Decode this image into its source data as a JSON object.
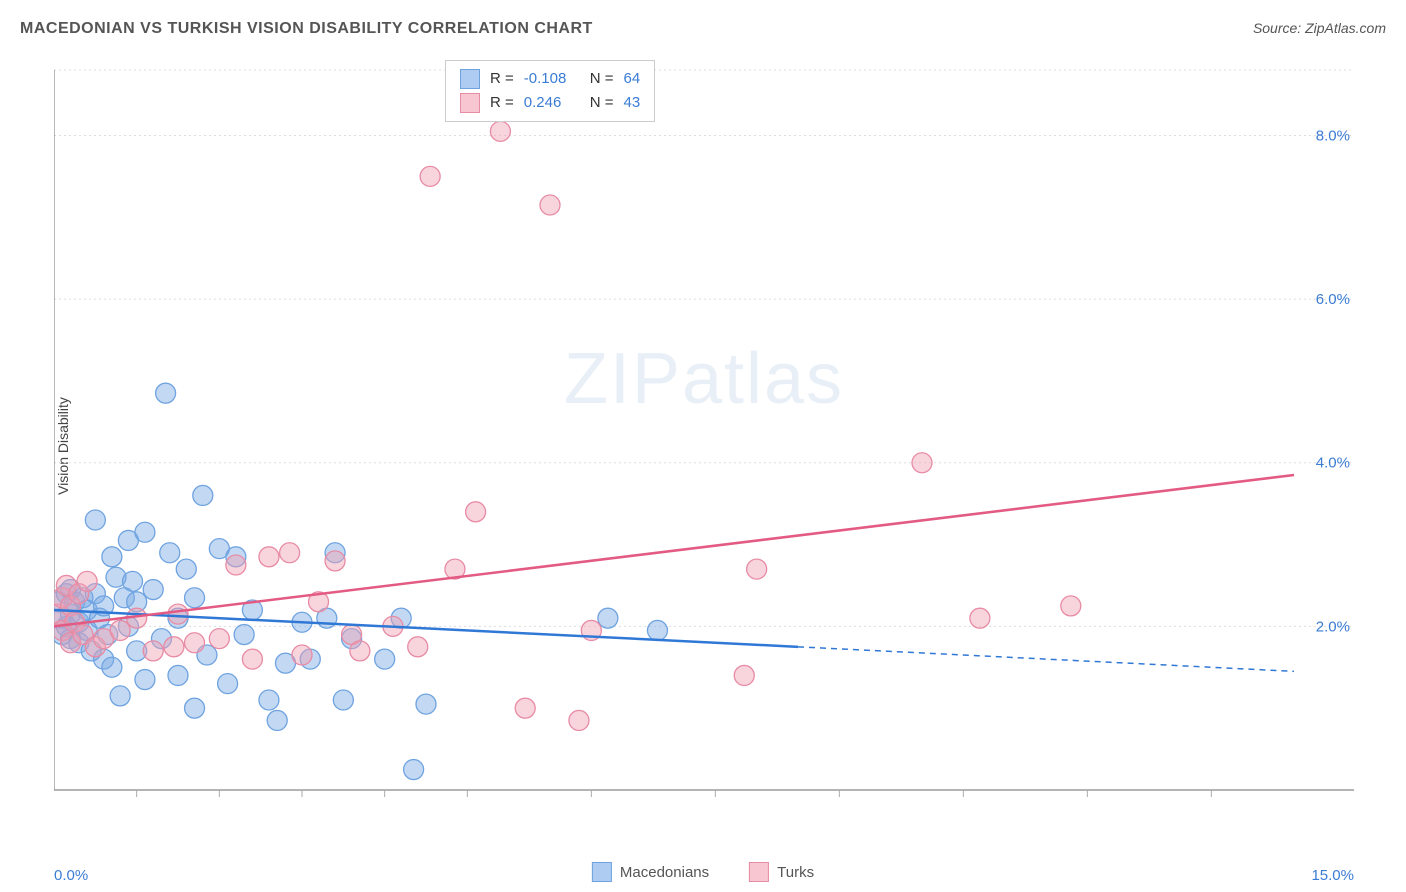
{
  "chart": {
    "type": "scatter-with-regression",
    "title": "MACEDONIAN VS TURKISH VISION DISABILITY CORRELATION CHART",
    "source_label": "Source: ZipAtlas.com",
    "y_axis_label": "Vision Disability",
    "watermark": {
      "left": "ZIP",
      "right": "atlas"
    },
    "background_color": "#ffffff",
    "grid_color": "#dddddd",
    "axis_color": "#888888",
    "tick_color": "#aaaaaa",
    "xlim": [
      0,
      15
    ],
    "ylim": [
      0,
      8.8
    ],
    "x_ticks_major": [
      0,
      15
    ],
    "x_tick_labels": [
      "0.0%",
      "15.0%"
    ],
    "x_ticks_minor": [
      1,
      2,
      3,
      4,
      5,
      6.5,
      8,
      9.5,
      11,
      12.5,
      14
    ],
    "y_ticks_major": [
      2,
      4,
      6,
      8
    ],
    "y_tick_labels": [
      "2.0%",
      "4.0%",
      "6.0%",
      "8.0%"
    ],
    "label_color": "#3b7cd4",
    "label_fontsize": 15,
    "title_color": "#555555",
    "title_fontsize": 16,
    "stat_box": {
      "border_color": "#cccccc",
      "rows": [
        {
          "swatch_fill": "#aeccf1",
          "swatch_border": "#6fa3e0",
          "r_label": "R =",
          "r_value": "-0.108",
          "n_label": "N =",
          "n_value": "64"
        },
        {
          "swatch_fill": "#f7c6d1",
          "swatch_border": "#e88ba4",
          "r_label": "R =",
          "r_value": "0.246",
          "n_label": "N =",
          "n_value": "43"
        }
      ]
    },
    "bottom_legend": [
      {
        "swatch_fill": "#aeccf1",
        "swatch_border": "#6fa3e0",
        "label": "Macedonians"
      },
      {
        "swatch_fill": "#f7c6d1",
        "swatch_border": "#e88ba4",
        "label": "Turks"
      }
    ],
    "series": [
      {
        "name": "Macedonians",
        "marker_fill": "rgba(122, 170, 228, 0.45)",
        "marker_stroke": "#6fa3e0",
        "marker_radius": 10,
        "line_color": "#2f78d6",
        "line_width": 2.5,
        "line_solid_x_end": 9.0,
        "line_dashed_x_end": 15.0,
        "regression": {
          "x1": 0,
          "y1": 2.2,
          "x2": 15,
          "y2": 1.45
        },
        "points": [
          [
            0.05,
            2.3
          ],
          [
            0.1,
            2.1
          ],
          [
            0.1,
            1.9
          ],
          [
            0.15,
            2.4
          ],
          [
            0.15,
            2.0
          ],
          [
            0.2,
            2.45
          ],
          [
            0.2,
            2.15
          ],
          [
            0.2,
            1.85
          ],
          [
            0.25,
            2.3
          ],
          [
            0.3,
            2.05
          ],
          [
            0.3,
            1.8
          ],
          [
            0.35,
            2.35
          ],
          [
            0.4,
            2.2
          ],
          [
            0.4,
            1.95
          ],
          [
            0.45,
            1.7
          ],
          [
            0.5,
            3.3
          ],
          [
            0.5,
            2.4
          ],
          [
            0.55,
            2.1
          ],
          [
            0.6,
            1.6
          ],
          [
            0.6,
            2.25
          ],
          [
            0.65,
            1.9
          ],
          [
            0.7,
            2.85
          ],
          [
            0.7,
            1.5
          ],
          [
            0.75,
            2.6
          ],
          [
            0.8,
            1.15
          ],
          [
            0.85,
            2.35
          ],
          [
            0.9,
            3.05
          ],
          [
            0.9,
            2.0
          ],
          [
            0.95,
            2.55
          ],
          [
            1.0,
            2.3
          ],
          [
            1.0,
            1.7
          ],
          [
            1.1,
            3.15
          ],
          [
            1.1,
            1.35
          ],
          [
            1.2,
            2.45
          ],
          [
            1.3,
            1.85
          ],
          [
            1.35,
            4.85
          ],
          [
            1.4,
            2.9
          ],
          [
            1.5,
            1.4
          ],
          [
            1.5,
            2.1
          ],
          [
            1.6,
            2.7
          ],
          [
            1.7,
            1.0
          ],
          [
            1.7,
            2.35
          ],
          [
            1.8,
            3.6
          ],
          [
            1.85,
            1.65
          ],
          [
            2.0,
            2.95
          ],
          [
            2.1,
            1.3
          ],
          [
            2.2,
            2.85
          ],
          [
            2.3,
            1.9
          ],
          [
            2.4,
            2.2
          ],
          [
            2.6,
            1.1
          ],
          [
            2.7,
            0.85
          ],
          [
            2.8,
            1.55
          ],
          [
            3.0,
            2.05
          ],
          [
            3.1,
            1.6
          ],
          [
            3.3,
            2.1
          ],
          [
            3.4,
            2.9
          ],
          [
            3.5,
            1.1
          ],
          [
            3.6,
            1.85
          ],
          [
            4.0,
            1.6
          ],
          [
            4.2,
            2.1
          ],
          [
            4.35,
            0.25
          ],
          [
            4.5,
            1.05
          ],
          [
            6.7,
            2.1
          ],
          [
            7.3,
            1.95
          ]
        ]
      },
      {
        "name": "Turks",
        "marker_fill": "rgba(240, 160, 180, 0.45)",
        "marker_stroke": "#e88ba4",
        "marker_radius": 10,
        "line_color": "#e35a82",
        "line_width": 2.5,
        "line_solid_x_end": 15.0,
        "line_dashed_x_end": 15.0,
        "regression": {
          "x1": 0,
          "y1": 2.0,
          "x2": 15,
          "y2": 3.85
        },
        "points": [
          [
            0.05,
            2.15
          ],
          [
            0.1,
            2.35
          ],
          [
            0.1,
            1.95
          ],
          [
            0.15,
            2.5
          ],
          [
            0.2,
            2.25
          ],
          [
            0.2,
            1.8
          ],
          [
            0.25,
            2.05
          ],
          [
            0.3,
            2.4
          ],
          [
            0.35,
            1.9
          ],
          [
            0.4,
            2.55
          ],
          [
            0.5,
            1.75
          ],
          [
            0.6,
            1.85
          ],
          [
            0.8,
            1.95
          ],
          [
            1.0,
            2.1
          ],
          [
            1.2,
            1.7
          ],
          [
            1.45,
            1.75
          ],
          [
            1.5,
            2.15
          ],
          [
            1.7,
            1.8
          ],
          [
            2.0,
            1.85
          ],
          [
            2.2,
            2.75
          ],
          [
            2.4,
            1.6
          ],
          [
            2.6,
            2.85
          ],
          [
            2.85,
            2.9
          ],
          [
            3.0,
            1.65
          ],
          [
            3.2,
            2.3
          ],
          [
            3.4,
            2.8
          ],
          [
            3.6,
            1.9
          ],
          [
            3.7,
            1.7
          ],
          [
            4.1,
            2.0
          ],
          [
            4.4,
            1.75
          ],
          [
            4.55,
            7.5
          ],
          [
            4.85,
            2.7
          ],
          [
            5.1,
            3.4
          ],
          [
            5.4,
            8.05
          ],
          [
            5.7,
            1.0
          ],
          [
            6.0,
            7.15
          ],
          [
            6.35,
            0.85
          ],
          [
            6.5,
            1.95
          ],
          [
            8.35,
            1.4
          ],
          [
            8.5,
            2.7
          ],
          [
            10.5,
            4.0
          ],
          [
            11.2,
            2.1
          ],
          [
            12.3,
            2.25
          ]
        ]
      }
    ]
  }
}
